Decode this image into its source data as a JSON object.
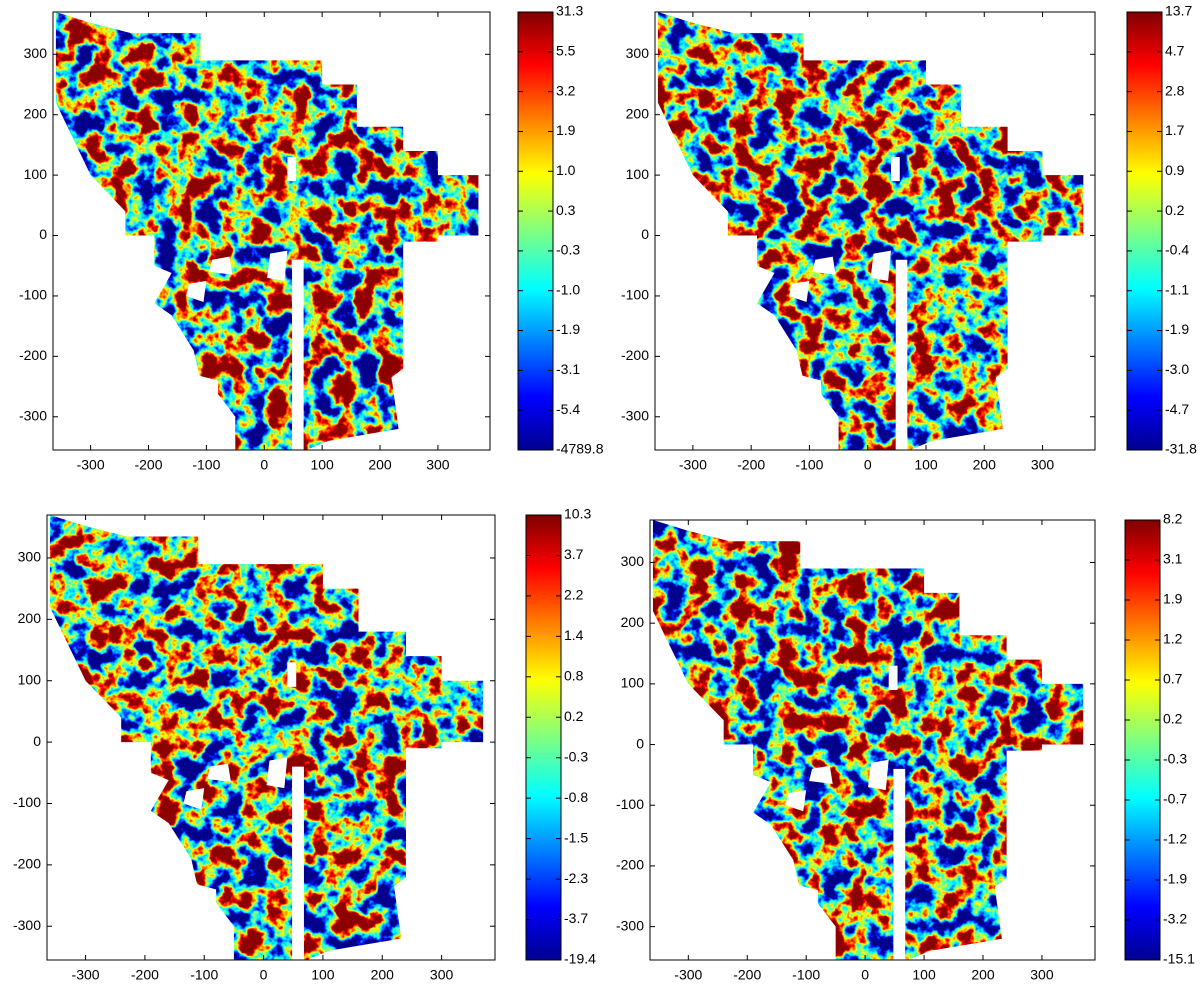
{
  "chart_data": [
    {
      "type": "heatmap",
      "colormap": "jet",
      "xlim": [
        -365,
        390
      ],
      "ylim": [
        -355,
        370
      ],
      "xticks": [
        -300,
        -200,
        -100,
        0,
        100,
        200,
        300
      ],
      "yticks": [
        -300,
        -200,
        -100,
        0,
        100,
        200,
        300
      ],
      "colorbar": {
        "ticks": [
          31.3,
          5.5,
          3.2,
          1.9,
          {
            "value": 1,
            "label": "1.0"
          },
          0.3,
          -0.3,
          {
            "value": -1,
            "label": "-1.0"
          },
          -1.9,
          -3.1,
          -5.4,
          -4789.8
        ]
      }
    },
    {
      "type": "heatmap",
      "colormap": "jet",
      "xlim": [
        -365,
        390
      ],
      "ylim": [
        -355,
        370
      ],
      "xticks": [
        -300,
        -200,
        -100,
        0,
        100,
        200,
        300
      ],
      "yticks": [
        -300,
        -200,
        -100,
        0,
        100,
        200,
        300
      ],
      "colorbar": {
        "ticks": [
          13.7,
          4.7,
          2.8,
          1.7,
          0.9,
          0.2,
          -0.4,
          -1.1,
          -1.9,
          {
            "value": -3,
            "label": "-3.0"
          },
          -4.7,
          -31.8
        ]
      }
    },
    {
      "type": "heatmap",
      "colormap": "jet",
      "xlim": [
        -365,
        390
      ],
      "ylim": [
        -355,
        370
      ],
      "xticks": [
        -300,
        -200,
        -100,
        0,
        100,
        200,
        300
      ],
      "yticks": [
        -300,
        -200,
        -100,
        0,
        100,
        200,
        300
      ],
      "colorbar": {
        "ticks": [
          10.3,
          3.7,
          2.2,
          1.4,
          0.8,
          0.2,
          -0.3,
          -0.8,
          -1.5,
          -2.3,
          -3.7,
          -19.4
        ]
      }
    },
    {
      "type": "heatmap",
      "colormap": "jet",
      "xlim": [
        -365,
        390
      ],
      "ylim": [
        -355,
        370
      ],
      "xticks": [
        -300,
        -200,
        -100,
        0,
        100,
        200,
        300
      ],
      "yticks": [
        -300,
        -200,
        -100,
        0,
        100,
        200,
        300
      ],
      "colorbar": {
        "ticks": [
          8.2,
          3.1,
          1.9,
          1.2,
          0.7,
          0.2,
          -0.3,
          -0.7,
          -1.2,
          -1.9,
          -3.2,
          -15.1
        ]
      }
    }
  ]
}
